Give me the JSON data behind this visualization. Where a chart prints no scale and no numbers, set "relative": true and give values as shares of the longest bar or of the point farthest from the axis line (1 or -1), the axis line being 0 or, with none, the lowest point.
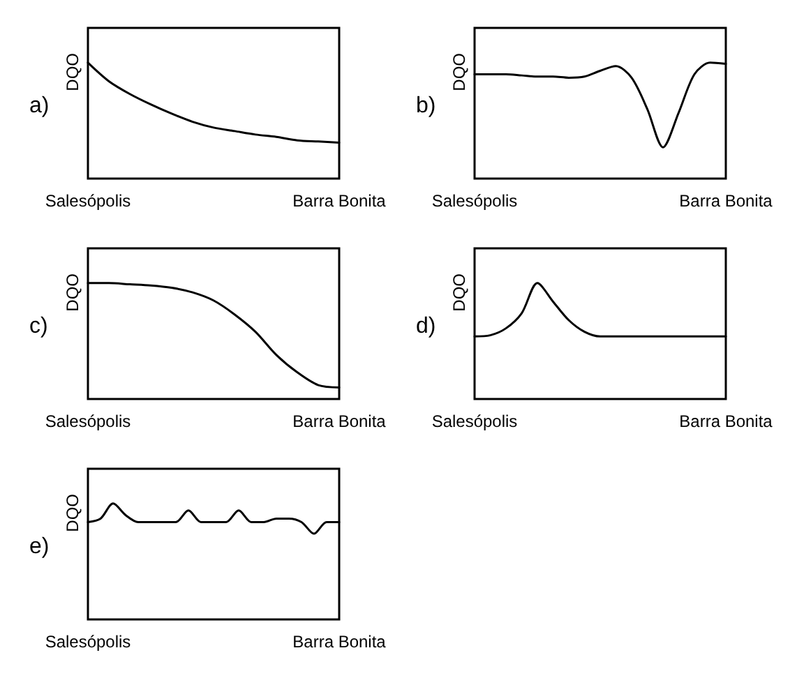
{
  "chart_data": [
    {
      "type": "line",
      "title": "a)",
      "ylabel": "DQO",
      "relative": true,
      "color": "#000000",
      "marker": "none",
      "categories": [
        "Salesópolis",
        null,
        null,
        null,
        null,
        null,
        null,
        null,
        null,
        null,
        null,
        null,
        "Barra Bonita"
      ],
      "values": [
        1,
        0.84,
        0.73,
        0.64,
        0.56,
        0.49,
        0.44,
        0.41,
        0.38,
        0.36,
        0.33,
        0.32,
        0.31
      ]
    },
    {
      "type": "line",
      "title": "b)",
      "ylabel": "DQO",
      "relative": true,
      "color": "#000000",
      "marker": "none",
      "categories": [
        "Salesópolis",
        null,
        null,
        null,
        null,
        null,
        null,
        null,
        null,
        null,
        null,
        null,
        null,
        null,
        null,
        null,
        "Barra Bonita"
      ],
      "values": [
        0.9,
        0.9,
        0.9,
        0.89,
        0.88,
        0.88,
        0.87,
        0.88,
        0.93,
        0.97,
        0.87,
        0.6,
        0.27,
        0.57,
        0.9,
        1,
        0.99
      ]
    },
    {
      "type": "line",
      "title": "c)",
      "ylabel": "DQO",
      "relative": true,
      "color": "#000000",
      "marker": "none",
      "categories": [
        "Salesópolis",
        null,
        null,
        null,
        null,
        null,
        null,
        null,
        null,
        null,
        null,
        null,
        "Barra Bonita"
      ],
      "values": [
        1,
        1,
        0.99,
        0.98,
        0.96,
        0.92,
        0.85,
        0.73,
        0.58,
        0.38,
        0.23,
        0.12,
        0.1
      ]
    },
    {
      "type": "line",
      "title": "d)",
      "ylabel": "DQO",
      "relative": true,
      "color": "#000000",
      "marker": "none",
      "categories": [
        "Salesópolis",
        null,
        null,
        null,
        null,
        null,
        null,
        null,
        null,
        null,
        null,
        null,
        null,
        null,
        null,
        null,
        "Barra Bonita"
      ],
      "values": [
        0.54,
        0.55,
        0.61,
        0.74,
        1,
        0.84,
        0.68,
        0.58,
        0.54,
        0.54,
        0.54,
        0.54,
        0.54,
        0.54,
        0.54,
        0.54,
        0.54
      ]
    },
    {
      "type": "line",
      "title": "e)",
      "ylabel": "DQO",
      "relative": true,
      "color": "#000000",
      "marker": "none",
      "categories": [
        "Salesópolis",
        null,
        null,
        null,
        null,
        null,
        null,
        null,
        null,
        null,
        null,
        null,
        null,
        null,
        null,
        null,
        null,
        null,
        null,
        null,
        "Barra Bonita"
      ],
      "values": [
        0.84,
        0.87,
        1,
        0.9,
        0.84,
        0.84,
        0.84,
        0.84,
        0.94,
        0.84,
        0.84,
        0.84,
        0.94,
        0.84,
        0.84,
        0.87,
        0.87,
        0.84,
        0.74,
        0.84,
        0.84
      ]
    }
  ]
}
